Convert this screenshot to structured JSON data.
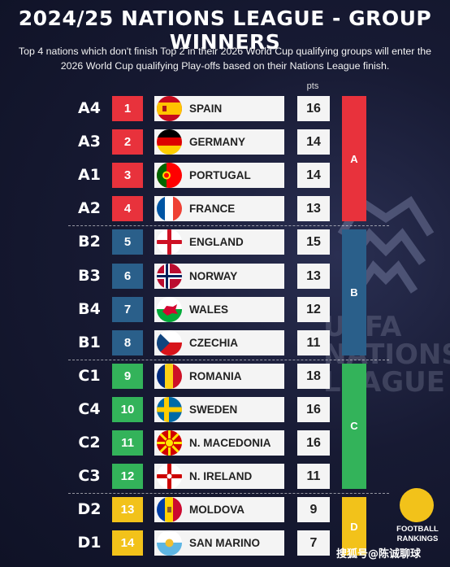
{
  "title": "2024/25 NATIONS LEAGUE - GROUP WINNERS",
  "subtitle": "Top 4 nations which don't finish Top 2 in their 2026 World Cup qualifying groups will enter the 2026 World Cup qualifying Play-offs based on their Nations League finish.",
  "pts_header": "pts",
  "watermark": [
    "UEFA",
    "NATIONS",
    "LEAGUE"
  ],
  "colors": {
    "A": "#e8323c",
    "B": "#2a5f8a",
    "C": "#33b35a",
    "D": "#f2c21a"
  },
  "groups": [
    {
      "label": "A",
      "color": "#e8323c"
    },
    {
      "label": "B",
      "color": "#2a5f8a"
    },
    {
      "label": "C",
      "color": "#33b35a"
    },
    {
      "label": "D",
      "color": "#f2c21a"
    }
  ],
  "rows": [
    {
      "code": "A4",
      "rank": "1",
      "name": "SPAIN",
      "pts": "16",
      "group": "A",
      "flag": "spain-flag-icon"
    },
    {
      "code": "A3",
      "rank": "2",
      "name": "GERMANY",
      "pts": "14",
      "group": "A",
      "flag": "germany-flag-icon"
    },
    {
      "code": "A1",
      "rank": "3",
      "name": "PORTUGAL",
      "pts": "14",
      "group": "A",
      "flag": "portugal-flag-icon"
    },
    {
      "code": "A2",
      "rank": "4",
      "name": "FRANCE",
      "pts": "13",
      "group": "A",
      "flag": "france-flag-icon"
    },
    {
      "code": "B2",
      "rank": "5",
      "name": "ENGLAND",
      "pts": "15",
      "group": "B",
      "flag": "england-flag-icon"
    },
    {
      "code": "B3",
      "rank": "6",
      "name": "NORWAY",
      "pts": "13",
      "group": "B",
      "flag": "norway-flag-icon"
    },
    {
      "code": "B4",
      "rank": "7",
      "name": "WALES",
      "pts": "12",
      "group": "B",
      "flag": "wales-flag-icon"
    },
    {
      "code": "B1",
      "rank": "8",
      "name": "CZECHIA",
      "pts": "11",
      "group": "B",
      "flag": "czechia-flag-icon"
    },
    {
      "code": "C1",
      "rank": "9",
      "name": "ROMANIA",
      "pts": "18",
      "group": "C",
      "flag": "romania-flag-icon"
    },
    {
      "code": "C4",
      "rank": "10",
      "name": "SWEDEN",
      "pts": "16",
      "group": "C",
      "flag": "sweden-flag-icon"
    },
    {
      "code": "C2",
      "rank": "11",
      "name": "N. MACEDONIA",
      "pts": "16",
      "group": "C",
      "flag": "north-macedonia-flag-icon"
    },
    {
      "code": "C3",
      "rank": "12",
      "name": "N. IRELAND",
      "pts": "11",
      "group": "C",
      "flag": "northern-ireland-flag-icon"
    },
    {
      "code": "D2",
      "rank": "13",
      "name": "MOLDOVA",
      "pts": "9",
      "group": "D",
      "flag": "moldova-flag-icon"
    },
    {
      "code": "D1",
      "rank": "14",
      "name": "SAN MARINO",
      "pts": "7",
      "group": "D",
      "flag": "san-marino-flag-icon"
    }
  ],
  "brand": {
    "line1": "FOOTBALL",
    "line2": "RANKINGS"
  },
  "source_watermark": "搜狐号@陈诚聊球"
}
